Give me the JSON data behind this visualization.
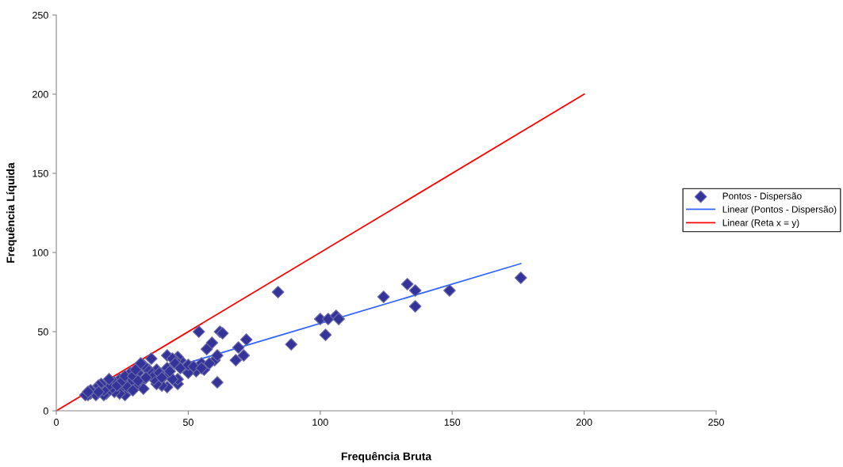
{
  "chart_data": {
    "type": "scatter",
    "xlabel": "Frequência Bruta",
    "ylabel": "Frequência Líquida",
    "xlim": [
      0,
      250
    ],
    "ylim": [
      0,
      250
    ],
    "xticks": [
      0,
      50,
      100,
      150,
      200,
      250
    ],
    "yticks": [
      0,
      50,
      100,
      150,
      200,
      250
    ],
    "grid": false,
    "legend": "right",
    "series": [
      {
        "name": "Pontos - Dispersão",
        "color": "#333399",
        "marker": "diamond",
        "x": [
          84,
          89,
          100,
          102,
          103,
          106,
          107,
          124,
          133,
          136,
          136,
          149,
          176,
          54,
          62,
          63,
          72,
          69,
          71,
          68,
          61,
          57,
          59,
          60,
          61,
          56,
          55,
          53,
          50,
          47,
          46,
          45,
          42,
          44,
          42,
          41,
          42,
          40,
          46,
          46,
          44,
          38,
          37,
          36,
          36,
          38,
          39,
          35,
          34,
          33,
          32,
          31,
          32,
          33,
          30,
          28,
          28,
          26,
          25,
          24,
          24,
          22,
          22,
          21,
          20,
          19,
          18,
          18,
          17,
          16,
          15,
          14,
          13,
          12,
          11,
          15,
          13,
          12,
          16,
          20,
          23,
          25,
          26,
          29,
          30,
          27,
          29,
          31,
          34,
          40,
          43,
          45,
          47,
          50,
          52,
          55,
          58
        ],
        "values": [
          75,
          42,
          58,
          48,
          58,
          60,
          58,
          72,
          80,
          76,
          66,
          76,
          84,
          50,
          50,
          49,
          45,
          40,
          35,
          32,
          18,
          39,
          43,
          32,
          35,
          26,
          30,
          25,
          24,
          32,
          34,
          32,
          35,
          33,
          27,
          22,
          15,
          16,
          17,
          20,
          20,
          17,
          20,
          33,
          23,
          26,
          24,
          26,
          27,
          29,
          30,
          24,
          18,
          14,
          16,
          18,
          24,
          10,
          15,
          20,
          11,
          18,
          12,
          14,
          16,
          11,
          10,
          13,
          17,
          16,
          14,
          12,
          11,
          10,
          10,
          10,
          13,
          12,
          12,
          20,
          16,
          19,
          22,
          22,
          26,
          15,
          13,
          19,
          21,
          21,
          25,
          30,
          27,
          29,
          28,
          27,
          30
        ]
      },
      {
        "name": "Linear (Pontos - Dispersão)",
        "color": "#3366ff",
        "type": "line",
        "x": [
          11,
          176
        ],
        "values": [
          11,
          93
        ]
      },
      {
        "name": "Linear (Reta x = y)",
        "color": "#ff0000",
        "type": "line",
        "x": [
          0,
          200
        ],
        "values": [
          0,
          200
        ]
      }
    ]
  }
}
